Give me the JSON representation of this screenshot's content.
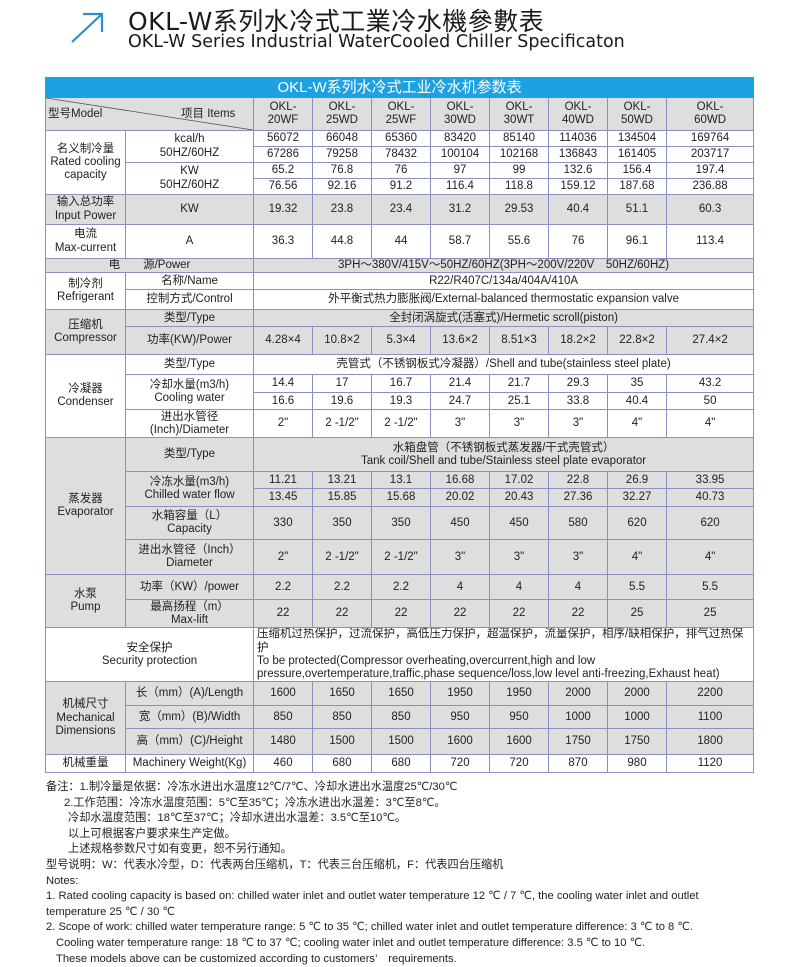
{
  "heading": {
    "title_cn": "OKL-W系列水冷式工業冷水機參數表",
    "title_en": "OKL-W Series Industrial WaterCooled Chiller Specificaton",
    "accent_color": "#1da1e3"
  },
  "table": {
    "title": "OKL-W系列水冷式工业冷水机参数表",
    "header": {
      "model_label": "型号Model",
      "items_label": "项目 Items",
      "models": [
        "OKL-\n20WF",
        "OKL-\n25WD",
        "OKL-\n25WF",
        "OKL-\n30WD",
        "OKL-\n30WT",
        "OKL-\n40WD",
        "OKL-\n50WD",
        "OKL-\n60WD"
      ]
    },
    "sections": [
      {
        "group": "名义制冷量\nRated cooling\ncapacity",
        "rows": [
          {
            "item": "kcal/h\n50HZ/60HZ",
            "values": [
              "56072",
              "66048",
              "65360",
              "83420",
              "85140",
              "114036",
              "134504",
              "169764"
            ]
          },
          {
            "item": null,
            "values": [
              "67286",
              "79258",
              "78432",
              "100104",
              "102168",
              "136843",
              "161405",
              "203717"
            ]
          },
          {
            "item": "KW\n50HZ/60HZ",
            "values": [
              "65.2",
              "76.8",
              "76",
              "97",
              "99",
              "132.6",
              "156.4",
              "197.4"
            ]
          },
          {
            "item": null,
            "values": [
              "76.56",
              "92.16",
              "91.2",
              "116.4",
              "118.8",
              "159.12",
              "187.68",
              "236.88"
            ]
          }
        ]
      },
      {
        "group": "输入总功率\nInput Power",
        "rows": [
          {
            "item": "KW",
            "values": [
              "19.32",
              "23.8",
              "23.4",
              "31.2",
              "29.53",
              "40.4",
              "51.1",
              "60.3"
            ]
          }
        ]
      },
      {
        "group": "电流\nMax-current",
        "rows": [
          {
            "item": "A",
            "values": [
              "36.3",
              "44.8",
              "44",
              "58.7",
              "55.6",
              "76",
              "96.1",
              "113.4"
            ]
          }
        ]
      },
      {
        "group": "电　　源/Power",
        "merged": true,
        "rows": [
          {
            "span": "3PH～380V/415V～50HZ/60HZ(3PH～200V/220V　50HZ/60HZ)"
          }
        ]
      },
      {
        "group": "制冷剂\nRefrigerant",
        "rows": [
          {
            "item": "名称/Name",
            "span": "R22/R407C/134a/404A/410A"
          },
          {
            "item": "控制方式/Control",
            "span": "外平衡式热力膨胀阀/External-balanced thermostatic expansion valve"
          }
        ]
      },
      {
        "group": "压缩机\nCompressor",
        "rows": [
          {
            "item": "类型/Type",
            "span": "全封闭涡旋式(活塞式)/Hermetic scroll(piston)"
          },
          {
            "item": "功率(KW)/Power",
            "values": [
              "4.28×4",
              "10.8×2",
              "5.3×4",
              "13.6×2",
              "8.51×3",
              "18.2×2",
              "22.8×2",
              "27.4×2"
            ]
          }
        ]
      },
      {
        "group": "冷凝器\nCondenser",
        "rows": [
          {
            "item": "类型/Type",
            "span": "壳管式（不锈钢板式冷凝器）/Shell and tube(stainless steel plate)"
          },
          {
            "item": "冷却水量(m3/h)\nCooling water",
            "values": [
              "14.4",
              "17",
              "16.7",
              "21.4",
              "21.7",
              "29.3",
              "35",
              "43.2"
            ]
          },
          {
            "item": null,
            "values": [
              "16.6",
              "19.6",
              "19.3",
              "24.7",
              "25.1",
              "33.8",
              "40.4",
              "50"
            ]
          },
          {
            "item": "进出水管径\n(Inch)/Diameter",
            "values": [
              "2\"",
              "2 -1/2\"",
              "2 -1/2\"",
              "3\"",
              "3\"",
              "3\"",
              "4\"",
              "4\""
            ]
          }
        ]
      },
      {
        "group": "蒸发器\nEvaporator",
        "rows": [
          {
            "item": "类型/Type",
            "span": "水箱盘管（不锈钢板式蒸发器/干式壳管式）\nTank coil/Shell and tube/Stainless steel plate evaporator"
          },
          {
            "item": "冷冻水量(m3/h)\nChilled water flow",
            "values": [
              "11.21",
              "13.21",
              "13.1",
              "16.68",
              "17.02",
              "22.8",
              "26.9",
              "33.95"
            ]
          },
          {
            "item": null,
            "values": [
              "13.45",
              "15.85",
              "15.68",
              "20.02",
              "20.43",
              "27.36",
              "32.27",
              "40.73"
            ]
          },
          {
            "item": "水箱容量（L）\nCapacity",
            "values": [
              "330",
              "350",
              "350",
              "450",
              "450",
              "580",
              "620",
              "620"
            ]
          },
          {
            "item": "进出水管径（Inch）\nDiameter",
            "values": [
              "2\"",
              "2 -1/2\"",
              "2 -1/2\"",
              "3\"",
              "3\"",
              "3\"",
              "4\"",
              "4\""
            ]
          }
        ]
      },
      {
        "group": "水泵\nPump",
        "rows": [
          {
            "item": "功率（KW）/power",
            "values": [
              "2.2",
              "2.2",
              "2.2",
              "4",
              "4",
              "4",
              "5.5",
              "5.5"
            ]
          },
          {
            "item": "最高扬程（m）\nMax-lift",
            "values": [
              "22",
              "22",
              "22",
              "22",
              "22",
              "22",
              "25",
              "25"
            ]
          }
        ]
      },
      {
        "group": "安全保护\nSecurity protection",
        "merged": true,
        "rows": [
          {
            "span": "压缩机过热保护，过流保护，高低压力保护，超温保护，流量保护，相序/缺相保护，排气过热保护\nTo be protected(Compressor overheating,overcurrent,high and low\npressure,overtemperature,traffic,phase sequence/loss,low level anti-freezing,Exhaust heat)",
            "left": true
          }
        ]
      },
      {
        "group": "机械尺寸\nMechanical\nDimensions",
        "rows": [
          {
            "item": "长（mm）(A)/Length",
            "values": [
              "1600",
              "1650",
              "1650",
              "1950",
              "1950",
              "2000",
              "2000",
              "2200"
            ]
          },
          {
            "item": "宽（mm）(B)/Width",
            "values": [
              "850",
              "850",
              "850",
              "950",
              "950",
              "1000",
              "1000",
              "1100"
            ]
          },
          {
            "item": "高（mm）(C)/Height",
            "values": [
              "1480",
              "1500",
              "1500",
              "1600",
              "1600",
              "1750",
              "1750",
              "1800"
            ]
          }
        ]
      },
      {
        "group": "机械重量",
        "rows": [
          {
            "item": "Machinery Weight(Kg)",
            "values": [
              "460",
              "680",
              "680",
              "720",
              "720",
              "870",
              "980",
              "1120"
            ]
          }
        ]
      }
    ]
  },
  "notes": {
    "cn": [
      "备注：1.制冷量是依据：冷冻水进出水温度12℃/7℃、冷却水进出水温度25℃/30℃",
      "2.工作范围：冷冻水温度范围：5℃至35℃；冷冻水进出水温差：3℃至8℃。",
      "冷却水温度范围：18℃至37℃；冷却水进出水温差：3.5℃至10℃。",
      "以上可根据客户要求来生产定做。",
      "上述规格参数尺寸如有变更，恕不另行通知。",
      "型号说明：W：代表水冷型，D：代表两台压缩机，T：代表三台压缩机，F：代表四台压缩机"
    ],
    "en_heading": "Notes:",
    "en": [
      "1. Rated cooling capacity is based on: chilled water inlet and outlet water temperature 12 ℃ / 7 ℃, the cooling water inlet and outlet",
      "temperature 25 ℃ / 30 ℃",
      "2. Scope of work: chilled water temperature range: 5 ℃ to 35 ℃; chilled water inlet and outlet temperature difference: 3 ℃ to 8 ℃.",
      "Cooling water temperature range: 18 ℃ to 37 ℃; cooling water inlet and outlet temperature difference: 3.5 ℃ to 10 ℃.",
      "These models above can be customized according to customers’　requirements."
    ]
  }
}
